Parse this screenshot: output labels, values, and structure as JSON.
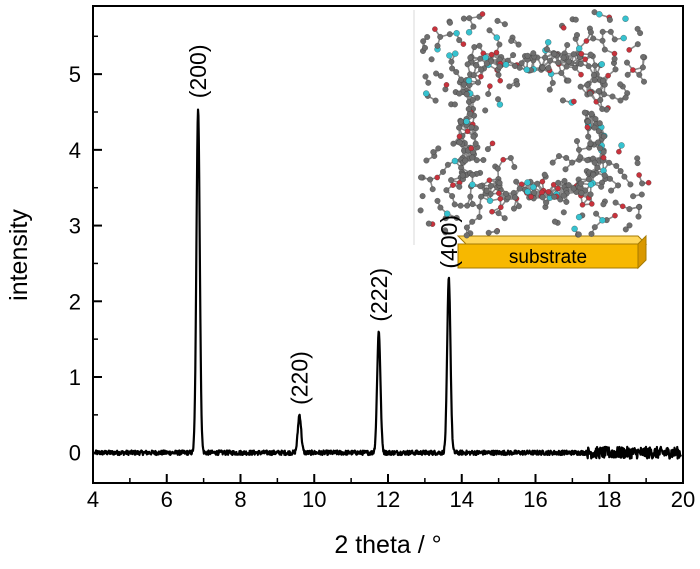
{
  "chart_data": {
    "type": "line",
    "title": "",
    "xlabel": "2 theta / °",
    "ylabel": "intensity",
    "xlim": [
      4,
      20
    ],
    "ylim": [
      -0.4,
      5.9
    ],
    "x_ticks": [
      "4",
      "6",
      "8",
      "10",
      "12",
      "14",
      "16",
      "18",
      "20"
    ],
    "y_ticks": [
      "0",
      "1",
      "2",
      "3",
      "4",
      "5"
    ],
    "grid": false,
    "legend": "none",
    "series": [
      {
        "color": "#000000",
        "noise_amplitude": 0.03,
        "peaks": [
          {
            "label": "(200)",
            "x": 6.85,
            "y": 4.55
          },
          {
            "label": "(220)",
            "x": 9.6,
            "y": 0.5
          },
          {
            "label": "(222)",
            "x": 11.75,
            "y": 1.6
          },
          {
            "label": "(400)",
            "x": 13.65,
            "y": 2.3
          }
        ]
      }
    ],
    "inset": {
      "label": "substrate",
      "substrate_color": "#f7b800",
      "atom_colors": {
        "carbon": "#6e6e6e",
        "oxygen": "#c8323c",
        "metal": "#36c2cf"
      }
    }
  }
}
